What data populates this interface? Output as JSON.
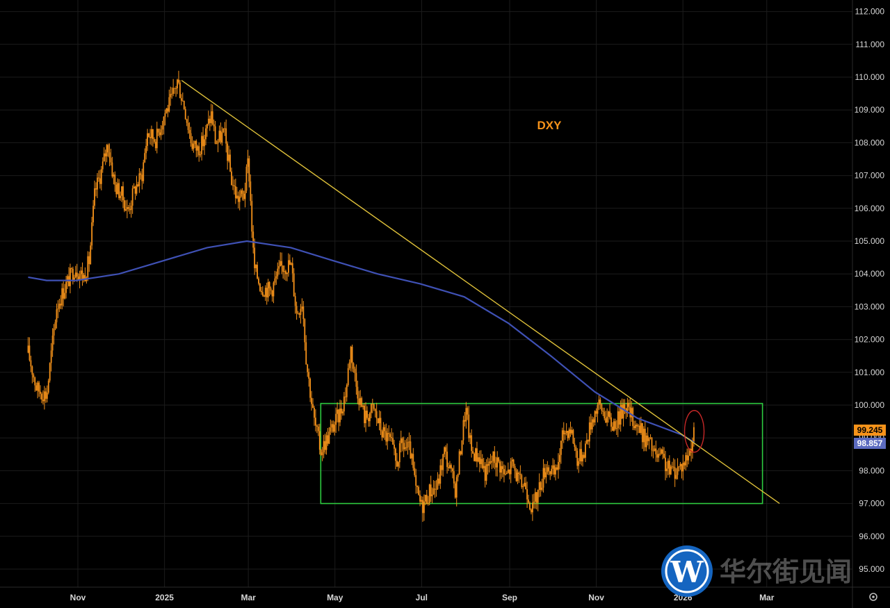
{
  "chart_data": {
    "type": "candlestick",
    "title": "DXY",
    "x_ticks": [
      "Nov",
      "2025",
      "Mar",
      "May",
      "Jul",
      "Sep",
      "Nov",
      "2026",
      "Mar"
    ],
    "y_ticks": [
      "95.000",
      "96.000",
      "97.000",
      "98.000",
      "99.000",
      "100.000",
      "101.000",
      "102.000",
      "103.000",
      "104.000",
      "105.000",
      "106.000",
      "107.000",
      "108.000",
      "109.000",
      "110.000",
      "111.000",
      "112.000"
    ],
    "ylim": [
      94.3,
      112.4
    ],
    "grid": true,
    "price_path": [
      [
        "2024-09-27",
        101.6
      ],
      [
        "2024-10-03",
        100.5
      ],
      [
        "2024-10-10",
        100.3
      ],
      [
        "2024-10-17",
        103.0
      ],
      [
        "2024-10-24",
        103.7
      ],
      [
        "2024-10-30",
        104.2
      ],
      [
        "2024-11-05",
        103.9
      ],
      [
        "2024-11-09",
        104.4
      ],
      [
        "2024-11-13",
        106.5
      ],
      [
        "2024-11-18",
        107.2
      ],
      [
        "2024-11-22",
        108.0
      ],
      [
        "2024-11-27",
        106.7
      ],
      [
        "2024-12-02",
        106.4
      ],
      [
        "2024-12-06",
        105.9
      ],
      [
        "2024-12-11",
        106.6
      ],
      [
        "2024-12-16",
        107.0
      ],
      [
        "2024-12-20",
        108.3
      ],
      [
        "2024-12-26",
        108.1
      ],
      [
        "2025-01-01",
        108.9
      ],
      [
        "2025-01-06",
        109.3
      ],
      [
        "2025-01-10",
        109.9
      ],
      [
        "2025-01-15",
        109.1
      ],
      [
        "2025-01-20",
        108.0
      ],
      [
        "2025-01-24",
        107.8
      ],
      [
        "2025-01-28",
        108.0
      ],
      [
        "2025-02-03",
        108.9
      ],
      [
        "2025-02-06",
        108.0
      ],
      [
        "2025-02-12",
        108.3
      ],
      [
        "2025-02-17",
        106.9
      ],
      [
        "2025-02-21",
        106.3
      ],
      [
        "2025-02-26",
        106.4
      ],
      [
        "2025-03-01",
        107.5
      ],
      [
        "2025-03-05",
        104.2
      ],
      [
        "2025-03-10",
        103.6
      ],
      [
        "2025-03-17",
        103.5
      ],
      [
        "2025-03-24",
        104.2
      ],
      [
        "2025-03-31",
        104.3
      ],
      [
        "2025-04-04",
        102.8
      ],
      [
        "2025-04-08",
        103.2
      ],
      [
        "2025-04-11",
        101.3
      ],
      [
        "2025-04-16",
        99.6
      ],
      [
        "2025-04-21",
        98.6
      ],
      [
        "2025-04-28",
        99.2
      ],
      [
        "2025-05-05",
        99.8
      ],
      [
        "2025-05-09",
        100.5
      ],
      [
        "2025-05-12",
        101.8
      ],
      [
        "2025-05-16",
        100.6
      ],
      [
        "2025-05-22",
        99.6
      ],
      [
        "2025-05-28",
        99.9
      ],
      [
        "2025-06-03",
        99.2
      ],
      [
        "2025-06-09",
        98.9
      ],
      [
        "2025-06-13",
        98.2
      ],
      [
        "2025-06-17",
        98.8
      ],
      [
        "2025-06-23",
        98.6
      ],
      [
        "2025-06-27",
        97.4
      ],
      [
        "2025-07-01",
        96.9
      ],
      [
        "2025-07-07",
        97.4
      ],
      [
        "2025-07-12",
        97.5
      ],
      [
        "2025-07-17",
        98.6
      ],
      [
        "2025-07-21",
        98.0
      ],
      [
        "2025-07-25",
        97.4
      ],
      [
        "2025-07-29",
        98.9
      ],
      [
        "2025-08-01",
        99.9
      ],
      [
        "2025-08-05",
        98.6
      ],
      [
        "2025-08-11",
        98.4
      ],
      [
        "2025-08-15",
        97.9
      ],
      [
        "2025-08-20",
        98.4
      ],
      [
        "2025-08-25",
        98.2
      ],
      [
        "2025-08-29",
        97.8
      ],
      [
        "2025-09-03",
        98.2
      ],
      [
        "2025-09-08",
        97.6
      ],
      [
        "2025-09-12",
        97.6
      ],
      [
        "2025-09-17",
        96.8
      ],
      [
        "2025-09-22",
        97.5
      ],
      [
        "2025-09-27",
        98.2
      ],
      [
        "2025-10-03",
        97.8
      ],
      [
        "2025-10-09",
        99.2
      ],
      [
        "2025-10-14",
        99.3
      ],
      [
        "2025-10-19",
        98.3
      ],
      [
        "2025-10-24",
        98.7
      ],
      [
        "2025-10-29",
        99.6
      ],
      [
        "2025-11-02",
        100.0
      ],
      [
        "2025-11-06",
        99.8
      ],
      [
        "2025-11-12",
        99.4
      ],
      [
        "2025-11-17",
        99.6
      ],
      [
        "2025-11-21",
        100.1
      ],
      [
        "2025-11-25",
        99.7
      ],
      [
        "2025-12-01",
        99.3
      ],
      [
        "2025-12-05",
        99.0
      ],
      [
        "2025-12-09",
        98.8
      ],
      [
        "2025-12-13",
        98.4
      ],
      [
        "2025-12-17",
        98.4
      ],
      [
        "2025-12-22",
        98.0
      ],
      [
        "2025-12-26",
        98.0
      ],
      [
        "2026-01-01",
        98.2
      ],
      [
        "2026-01-05",
        98.5
      ],
      [
        "2026-01-09",
        99.2
      ]
    ],
    "ma_path": [
      [
        "2024-09-27",
        103.9
      ],
      [
        "2024-10-10",
        103.8
      ],
      [
        "2024-10-31",
        103.8
      ],
      [
        "2024-11-30",
        104.0
      ],
      [
        "2024-12-31",
        104.4
      ],
      [
        "2025-01-31",
        104.8
      ],
      [
        "2025-02-28",
        105.0
      ],
      [
        "2025-03-31",
        104.8
      ],
      [
        "2025-04-30",
        104.4
      ],
      [
        "2025-05-31",
        104.0
      ],
      [
        "2025-06-30",
        103.7
      ],
      [
        "2025-07-31",
        103.3
      ],
      [
        "2025-08-31",
        102.5
      ],
      [
        "2025-09-30",
        101.5
      ],
      [
        "2025-10-31",
        100.4
      ],
      [
        "2025-11-30",
        99.6
      ],
      [
        "2025-12-31",
        99.1
      ],
      [
        "2026-01-09",
        98.857
      ]
    ],
    "trendline": {
      "from": [
        "2025-01-13",
        109.9
      ],
      "to": [
        "2026-03-10",
        97.0
      ]
    },
    "range_box": {
      "from": "2025-04-21",
      "to": "2026-02-26",
      "low": 97.0,
      "high": 100.05
    },
    "last_price": "99.245",
    "ma_value": "98.857",
    "colors": {
      "candles": "#f7931a",
      "ma": "#3f51b5",
      "trendline": "#e0c23a",
      "box": "#2ecc40",
      "highlight": "#c62828",
      "ma_tag": "#5c6bc0"
    }
  },
  "watermark": {
    "text": "华尔街见闻",
    "logo_letter": "W"
  },
  "settings_icon": "gear-icon"
}
